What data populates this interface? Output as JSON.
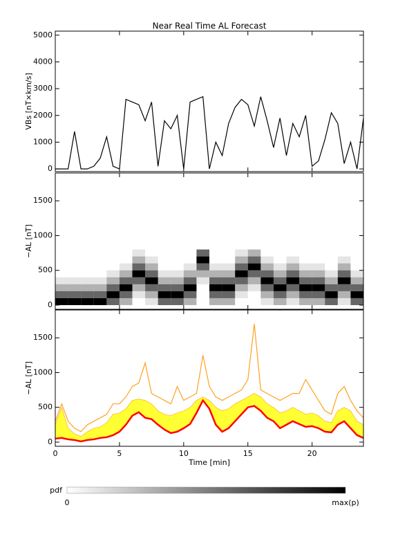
{
  "chart_data": [
    {
      "type": "line",
      "title": "Near Real Time AL Forecast",
      "ylabel": "VBs [nT×km/s]",
      "x": [
        0,
        0.5,
        1,
        1.5,
        2,
        2.5,
        3,
        3.5,
        4,
        4.5,
        5,
        5.5,
        6,
        6.5,
        7,
        7.5,
        8,
        8.5,
        9,
        9.5,
        10,
        10.5,
        11,
        11.5,
        12,
        12.5,
        13,
        13.5,
        14,
        14.5,
        15,
        15.5,
        16,
        16.5,
        17,
        17.5,
        18,
        18.5,
        19,
        19.5,
        20,
        20.5,
        21,
        21.5,
        22,
        22.5,
        23,
        23.5,
        24
      ],
      "series": [
        {
          "color": "#000000",
          "values": [
            0,
            0,
            0,
            1400,
            0,
            0,
            100,
            400,
            1200,
            100,
            0,
            2600,
            2500,
            2400,
            1800,
            2500,
            100,
            1800,
            1500,
            2000,
            0,
            2500,
            2600,
            2700,
            0,
            1000,
            500,
            1700,
            2300,
            2600,
            2400,
            1600,
            2700,
            1800,
            800,
            1900,
            500,
            1700,
            1200,
            2000,
            100,
            300,
            1100,
            2100,
            1700,
            200,
            1000,
            0,
            1900
          ]
        }
      ],
      "xlim": [
        0,
        24
      ],
      "xticks": [
        0,
        5,
        10,
        15,
        20
      ],
      "xtick_labels": false,
      "ylim": [
        -100,
        5150
      ],
      "yticks": [
        0,
        1000,
        2000,
        3000,
        4000,
        5000
      ]
    },
    {
      "type": "heatmap",
      "ylabel": "−AL [nT]",
      "color": "#000000",
      "x": [
        0.5,
        1.5,
        2.5,
        3.5,
        4.5,
        5.5,
        6.5,
        7.5,
        8.5,
        9.5,
        10.5,
        11.5,
        12.5,
        13.5,
        14.5,
        15.5,
        16.5,
        17.5,
        18.5,
        19.5,
        20.5,
        21.5,
        22.5,
        23.5
      ],
      "y_bins": [
        0,
        100,
        200,
        300,
        400,
        500,
        600,
        700,
        800
      ],
      "z": [
        [
          1,
          1,
          1,
          1,
          0.6,
          0.3,
          0,
          0.1,
          0.6,
          0.6,
          0.3,
          0,
          0.3,
          0.3,
          0,
          0,
          0.1,
          0.3,
          0.1,
          0.3,
          0.3,
          0.6,
          0.1,
          0.6
        ],
        [
          0.6,
          0.6,
          0.6,
          0.6,
          1,
          0.6,
          0.1,
          0.3,
          1,
          1,
          0.6,
          0,
          0.6,
          0.6,
          0.1,
          0,
          0.3,
          0.6,
          0.3,
          0.6,
          0.6,
          1,
          0.3,
          1
        ],
        [
          0.3,
          0.3,
          0.3,
          0.3,
          0.6,
          1,
          0.3,
          0.6,
          0.6,
          0.6,
          1,
          0,
          1,
          1,
          0.3,
          0.1,
          0.6,
          1,
          0.6,
          1,
          1,
          0.6,
          0.6,
          0.6
        ],
        [
          0.1,
          0.1,
          0.1,
          0.1,
          0.3,
          0.6,
          0.6,
          1,
          0.3,
          0.3,
          0.6,
          0.1,
          0.6,
          0.6,
          0.6,
          0.3,
          1,
          0.6,
          1,
          0.6,
          0.6,
          0.3,
          1,
          0.3
        ],
        [
          0,
          0,
          0,
          0,
          0.1,
          0.3,
          1,
          0.6,
          0.1,
          0.1,
          0.3,
          0.3,
          0.3,
          0.3,
          1,
          0.6,
          0.6,
          0.3,
          0.6,
          0.3,
          0.3,
          0.1,
          0.6,
          0.1
        ],
        [
          0,
          0,
          0,
          0,
          0,
          0.1,
          0.6,
          0.3,
          0,
          0,
          0.1,
          0.6,
          0.1,
          0.1,
          0.6,
          1,
          0.3,
          0.1,
          0.3,
          0.1,
          0.1,
          0,
          0.3,
          0
        ],
        [
          0,
          0,
          0,
          0,
          0,
          0,
          0.3,
          0.1,
          0,
          0,
          0,
          1,
          0,
          0,
          0.3,
          0.6,
          0.1,
          0,
          0.1,
          0,
          0,
          0,
          0.1,
          0
        ],
        [
          0,
          0,
          0,
          0,
          0,
          0,
          0.1,
          0,
          0,
          0,
          0,
          0.6,
          0,
          0,
          0.1,
          0.3,
          0,
          0,
          0,
          0,
          0,
          0,
          0,
          0
        ]
      ],
      "colorbar": {
        "label": "pdf",
        "min_label": "0",
        "max_label": "max(p)"
      },
      "xlim": [
        0,
        24
      ],
      "xticks": [
        0,
        5,
        10,
        15,
        20
      ],
      "xtick_labels": false,
      "ylim": [
        -60,
        1900
      ],
      "yticks": [
        0,
        500,
        1000,
        1500
      ]
    },
    {
      "type": "line",
      "ylabel": "−AL [nT]",
      "xlabel": "Time [min]",
      "x": [
        0,
        0.5,
        1,
        1.5,
        2,
        2.5,
        3,
        3.5,
        4,
        4.5,
        5,
        5.5,
        6,
        6.5,
        7,
        7.5,
        8,
        8.5,
        9,
        9.5,
        10,
        10.5,
        11,
        11.5,
        12,
        12.5,
        13,
        13.5,
        14,
        14.5,
        15,
        15.5,
        16,
        16.5,
        17,
        17.5,
        18,
        18.5,
        19,
        19.5,
        20,
        20.5,
        21,
        21.5,
        22,
        22.5,
        23,
        23.5,
        24
      ],
      "series": [
        {
          "color": "#ffa020",
          "values": [
            300,
            550,
            300,
            200,
            150,
            250,
            300,
            350,
            400,
            550,
            550,
            650,
            800,
            850,
            1140,
            700,
            650,
            600,
            550,
            800,
            600,
            650,
            700,
            1250,
            800,
            650,
            600,
            650,
            700,
            750,
            900,
            1700,
            750,
            700,
            650,
            600,
            650,
            700,
            700,
            900,
            750,
            600,
            450,
            400,
            700,
            800,
            600,
            450,
            350
          ]
        },
        {
          "color": "#ffff33",
          "fill_to": 2,
          "values": [
            250,
            500,
            200,
            120,
            80,
            150,
            200,
            220,
            280,
            400,
            420,
            480,
            600,
            620,
            600,
            550,
            450,
            400,
            380,
            420,
            450,
            500,
            600,
            650,
            600,
            500,
            450,
            480,
            550,
            600,
            650,
            700,
            650,
            550,
            500,
            420,
            450,
            500,
            450,
            400,
            420,
            380,
            300,
            280,
            450,
            500,
            450,
            300,
            250
          ]
        },
        {
          "color": "#ff0000",
          "width": 2.5,
          "values": [
            50,
            60,
            40,
            30,
            10,
            30,
            40,
            60,
            70,
            100,
            150,
            250,
            380,
            430,
            350,
            330,
            250,
            180,
            130,
            150,
            200,
            260,
            420,
            600,
            480,
            250,
            150,
            200,
            300,
            400,
            500,
            520,
            450,
            350,
            300,
            200,
            250,
            300,
            260,
            220,
            230,
            200,
            150,
            140,
            250,
            300,
            200,
            100,
            60
          ]
        }
      ],
      "xlim": [
        0,
        24
      ],
      "xticks": [
        0,
        5,
        10,
        15,
        20
      ],
      "xtick_labels": true,
      "ylim": [
        -60,
        1900
      ],
      "yticks": [
        0,
        500,
        1000,
        1500
      ]
    }
  ]
}
